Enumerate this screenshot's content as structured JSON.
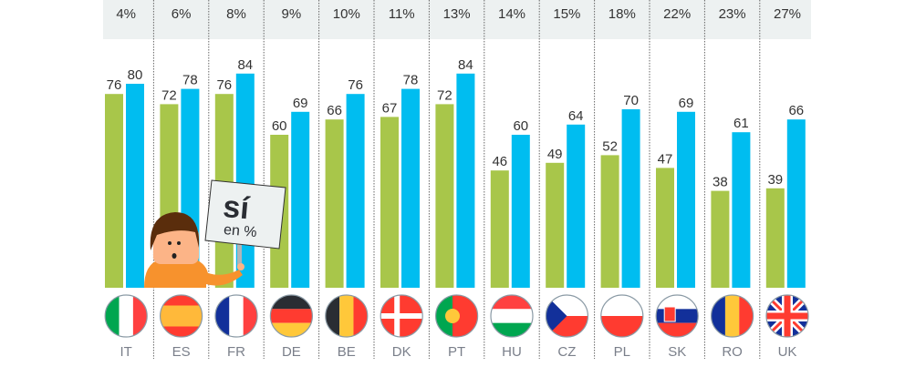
{
  "chart_data": {
    "type": "bar",
    "categories": [
      "IT",
      "ES",
      "FR",
      "DE",
      "BE",
      "DK",
      "PT",
      "HU",
      "CZ",
      "PL",
      "SK",
      "RO",
      "UK"
    ],
    "top_labels": [
      "4%",
      "6%",
      "8%",
      "9%",
      "10%",
      "11%",
      "13%",
      "14%",
      "15%",
      "18%",
      "22%",
      "23%",
      "27%"
    ],
    "series": [
      {
        "values": [
          76,
          72,
          76,
          60,
          66,
          67,
          72,
          46,
          49,
          52,
          47,
          38,
          39
        ],
        "color": "#a8c64a"
      },
      {
        "values": [
          80,
          78,
          84,
          69,
          76,
          78,
          84,
          60,
          64,
          70,
          69,
          61,
          66
        ],
        "color": "#00bdf0"
      }
    ],
    "ylim": [
      0,
      90
    ],
    "grid": false,
    "sign": {
      "line1": "sí",
      "line2": "en %"
    }
  }
}
